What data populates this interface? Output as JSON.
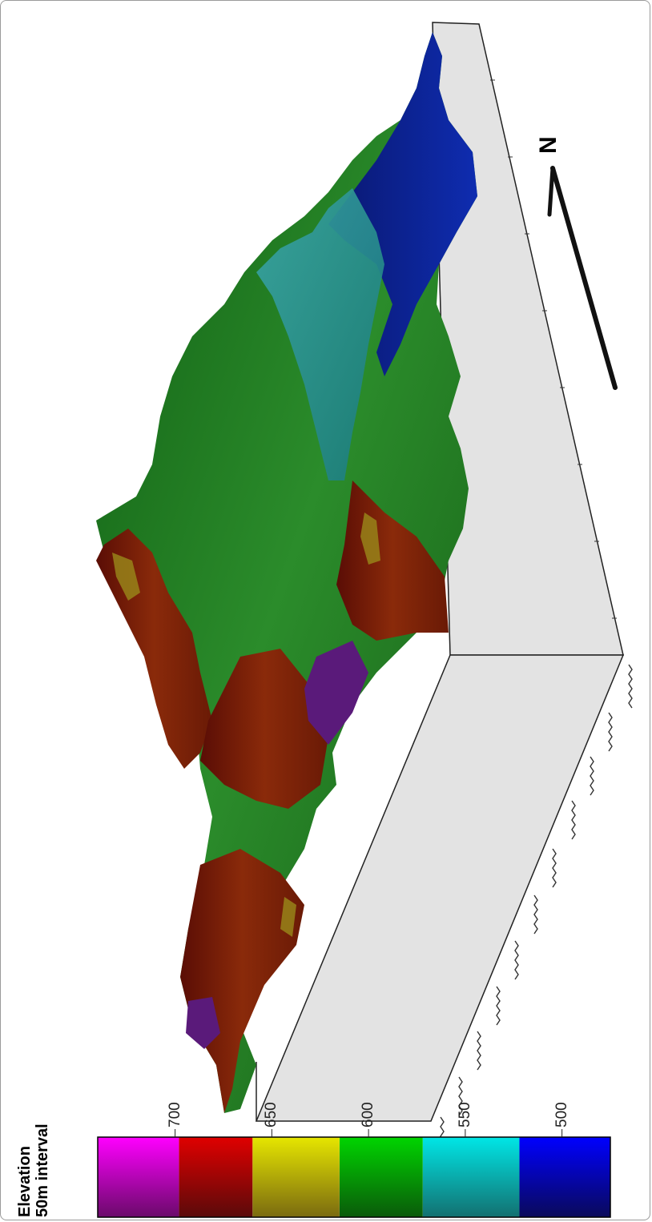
{
  "legend": {
    "title_line1": "Elevation",
    "title_line2": "50m interval",
    "ticks": [
      {
        "label": "700",
        "value": 700
      },
      {
        "label": "650",
        "value": 650
      },
      {
        "label": "600",
        "value": 600
      },
      {
        "label": "550",
        "value": 550
      },
      {
        "label": "500",
        "value": 500
      }
    ],
    "bands": [
      {
        "from": 475,
        "to": 522,
        "color_light": "#0000ff",
        "color_dark": "#0a0a5a"
      },
      {
        "from": 522,
        "to": 572,
        "color_light": "#00e6e6",
        "color_dark": "#137070"
      },
      {
        "from": 572,
        "to": 615,
        "color_light": "#00d400",
        "color_dark": "#0a5a0a"
      },
      {
        "from": 615,
        "to": 660,
        "color_light": "#e6e600",
        "color_dark": "#7a6a10"
      },
      {
        "from": 660,
        "to": 698,
        "color_light": "#e00000",
        "color_dark": "#5a0a0a"
      },
      {
        "from": 698,
        "to": 740,
        "color_light": "#ff00ff",
        "color_dark": "#6a0a6a"
      }
    ]
  },
  "north_arrow": {
    "label": "N"
  },
  "colors": {
    "base_box": "#e3e3e3",
    "base_edge": "#222222",
    "terrain_green": "#1e7a1e",
    "terrain_red": "#6a1508",
    "terrain_blue": "#0c1a8a",
    "terrain_cyan": "#2a9a9a",
    "terrain_purple": "#5a1a7a"
  }
}
